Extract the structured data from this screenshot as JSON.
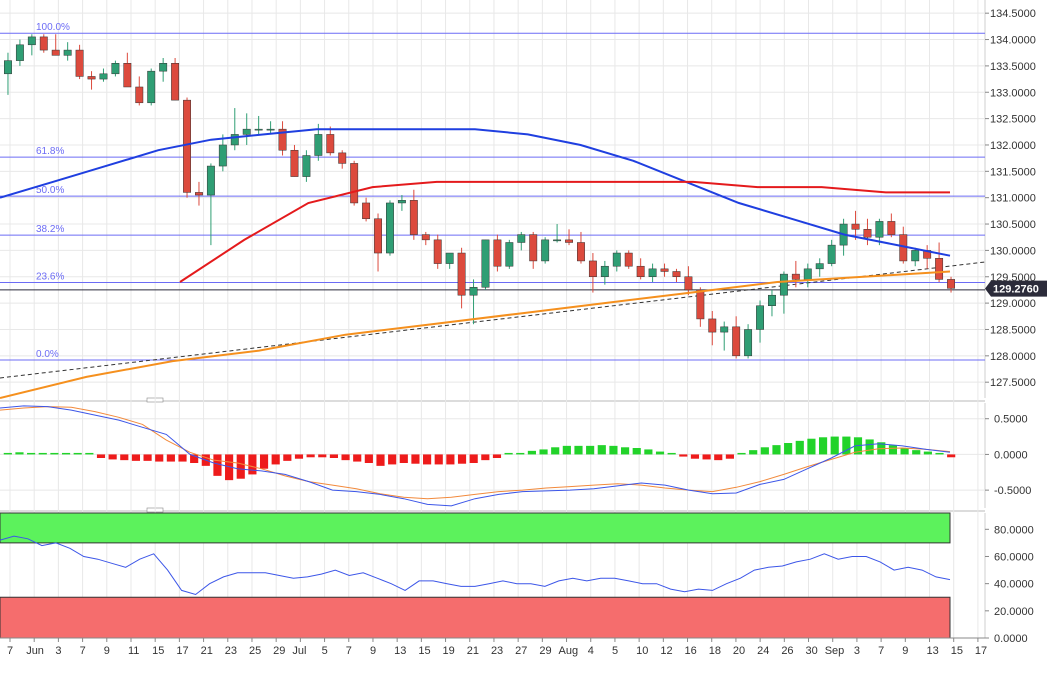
{
  "chart_data": [
    {
      "type": "candlestick",
      "panel": "price",
      "y_axis_ticks": [
        "134.5000",
        "134.0000",
        "133.5000",
        "133.0000",
        "132.5000",
        "132.0000",
        "131.5000",
        "131.0000",
        "130.5000",
        "130.0000",
        "129.5000",
        "129.0000",
        "128.5000",
        "128.0000",
        "127.5000"
      ],
      "ylim": [
        127.2,
        134.75
      ],
      "last_price_label": "129.2760",
      "last_price": 129.276,
      "fib_levels": [
        {
          "label": "100.0%",
          "value": 134.12
        },
        {
          "label": "61.8%",
          "value": 131.77
        },
        {
          "label": "50.0%",
          "value": 131.03
        },
        {
          "label": "38.2%",
          "value": 130.29
        },
        {
          "label": "23.6%",
          "value": 129.39
        },
        {
          "label": "0.0%",
          "value": 127.92
        }
      ],
      "support_line_value": 129.25,
      "trendline": {
        "start": 127.58,
        "end": 129.78
      },
      "ma_blue": [
        131.0,
        131.3,
        131.6,
        131.9,
        132.1,
        132.2,
        132.3,
        132.3,
        132.3,
        132.3,
        132.2,
        132.0,
        131.7,
        131.3,
        130.9,
        130.6,
        130.3,
        130.1,
        129.9
      ],
      "ma_red": [
        129.4,
        130.2,
        130.9,
        131.2,
        131.3,
        131.3,
        131.3,
        131.3,
        131.3,
        131.2,
        131.2,
        131.1,
        131.1
      ],
      "ma_orange": [
        127.2,
        127.6,
        127.9,
        128.1,
        128.4,
        128.6,
        128.8,
        129.0,
        129.2,
        129.4,
        129.5,
        129.6
      ],
      "candles": [
        {
          "o": 133.35,
          "h": 133.75,
          "l": 132.95,
          "c": 133.6
        },
        {
          "o": 133.6,
          "h": 134.0,
          "l": 133.5,
          "c": 133.9
        },
        {
          "o": 133.9,
          "h": 134.1,
          "l": 133.7,
          "c": 134.05
        },
        {
          "o": 134.05,
          "h": 134.1,
          "l": 133.75,
          "c": 133.8
        },
        {
          "o": 133.8,
          "h": 134.1,
          "l": 133.7,
          "c": 133.7
        },
        {
          "o": 133.7,
          "h": 133.95,
          "l": 133.6,
          "c": 133.8
        },
        {
          "o": 133.8,
          "h": 133.9,
          "l": 133.25,
          "c": 133.3
        },
        {
          "o": 133.3,
          "h": 133.4,
          "l": 133.05,
          "c": 133.25
        },
        {
          "o": 133.25,
          "h": 133.45,
          "l": 133.2,
          "c": 133.35
        },
        {
          "o": 133.35,
          "h": 133.6,
          "l": 133.3,
          "c": 133.55
        },
        {
          "o": 133.55,
          "h": 133.75,
          "l": 133.1,
          "c": 133.1
        },
        {
          "o": 133.1,
          "h": 133.3,
          "l": 132.75,
          "c": 132.8
        },
        {
          "o": 132.8,
          "h": 133.45,
          "l": 132.75,
          "c": 133.4
        },
        {
          "o": 133.4,
          "h": 133.65,
          "l": 133.2,
          "c": 133.55
        },
        {
          "o": 133.55,
          "h": 133.65,
          "l": 132.85,
          "c": 132.85
        },
        {
          "o": 132.85,
          "h": 132.9,
          "l": 131.0,
          "c": 131.1
        },
        {
          "o": 131.1,
          "h": 131.3,
          "l": 130.85,
          "c": 131.05
        },
        {
          "o": 131.05,
          "h": 131.65,
          "l": 130.1,
          "c": 131.6
        },
        {
          "o": 131.6,
          "h": 132.2,
          "l": 131.5,
          "c": 132.0
        },
        {
          "o": 132.0,
          "h": 132.7,
          "l": 131.9,
          "c": 132.2
        },
        {
          "o": 132.2,
          "h": 132.6,
          "l": 132.0,
          "c": 132.3
        },
        {
          "o": 132.3,
          "h": 132.55,
          "l": 132.2,
          "c": 132.3
        },
        {
          "o": 132.3,
          "h": 132.45,
          "l": 132.2,
          "c": 132.3
        },
        {
          "o": 132.3,
          "h": 132.45,
          "l": 131.8,
          "c": 131.9
        },
        {
          "o": 131.9,
          "h": 132.0,
          "l": 131.4,
          "c": 131.4
        },
        {
          "o": 131.4,
          "h": 131.9,
          "l": 131.3,
          "c": 131.8
        },
        {
          "o": 131.8,
          "h": 132.4,
          "l": 131.7,
          "c": 132.2
        },
        {
          "o": 132.2,
          "h": 132.35,
          "l": 131.8,
          "c": 131.85
        },
        {
          "o": 131.85,
          "h": 131.9,
          "l": 131.55,
          "c": 131.65
        },
        {
          "o": 131.65,
          "h": 131.7,
          "l": 130.85,
          "c": 130.9
        },
        {
          "o": 130.9,
          "h": 131.0,
          "l": 130.55,
          "c": 130.6
        },
        {
          "o": 130.6,
          "h": 130.7,
          "l": 129.6,
          "c": 129.95
        },
        {
          "o": 129.95,
          "h": 130.95,
          "l": 129.9,
          "c": 130.9
        },
        {
          "o": 130.9,
          "h": 131.05,
          "l": 130.75,
          "c": 130.95
        },
        {
          "o": 130.95,
          "h": 131.15,
          "l": 130.2,
          "c": 130.3
        },
        {
          "o": 130.3,
          "h": 130.35,
          "l": 130.1,
          "c": 130.2
        },
        {
          "o": 130.2,
          "h": 130.3,
          "l": 129.65,
          "c": 129.75
        },
        {
          "o": 129.75,
          "h": 129.95,
          "l": 129.65,
          "c": 129.95
        },
        {
          "o": 129.95,
          "h": 130.05,
          "l": 128.9,
          "c": 129.15
        },
        {
          "o": 129.15,
          "h": 129.45,
          "l": 128.6,
          "c": 129.3
        },
        {
          "o": 129.3,
          "h": 130.2,
          "l": 129.25,
          "c": 130.2
        },
        {
          "o": 130.2,
          "h": 130.3,
          "l": 129.6,
          "c": 129.7
        },
        {
          "o": 129.7,
          "h": 130.2,
          "l": 129.65,
          "c": 130.15
        },
        {
          "o": 130.15,
          "h": 130.35,
          "l": 130.0,
          "c": 130.3
        },
        {
          "o": 130.3,
          "h": 130.35,
          "l": 129.65,
          "c": 129.8
        },
        {
          "o": 129.8,
          "h": 130.25,
          "l": 129.75,
          "c": 130.2
        },
        {
          "o": 130.2,
          "h": 130.5,
          "l": 130.15,
          "c": 130.2
        },
        {
          "o": 130.2,
          "h": 130.4,
          "l": 130.1,
          "c": 130.15
        },
        {
          "o": 130.15,
          "h": 130.35,
          "l": 129.75,
          "c": 129.8
        },
        {
          "o": 129.8,
          "h": 129.95,
          "l": 129.2,
          "c": 129.5
        },
        {
          "o": 129.5,
          "h": 129.8,
          "l": 129.35,
          "c": 129.7
        },
        {
          "o": 129.7,
          "h": 130.0,
          "l": 129.6,
          "c": 129.95
        },
        {
          "o": 129.95,
          "h": 130.0,
          "l": 129.65,
          "c": 129.7
        },
        {
          "o": 129.7,
          "h": 129.85,
          "l": 129.45,
          "c": 129.5
        },
        {
          "o": 129.5,
          "h": 129.75,
          "l": 129.4,
          "c": 129.65
        },
        {
          "o": 129.65,
          "h": 129.75,
          "l": 129.5,
          "c": 129.6
        },
        {
          "o": 129.6,
          "h": 129.65,
          "l": 129.4,
          "c": 129.5
        },
        {
          "o": 129.5,
          "h": 129.7,
          "l": 129.15,
          "c": 129.25
        },
        {
          "o": 129.25,
          "h": 129.3,
          "l": 128.55,
          "c": 128.7
        },
        {
          "o": 128.7,
          "h": 128.85,
          "l": 128.2,
          "c": 128.45
        },
        {
          "o": 128.45,
          "h": 128.65,
          "l": 128.1,
          "c": 128.55
        },
        {
          "o": 128.55,
          "h": 128.75,
          "l": 127.95,
          "c": 128.0
        },
        {
          "o": 128.0,
          "h": 128.6,
          "l": 127.95,
          "c": 128.5
        },
        {
          "o": 128.5,
          "h": 129.05,
          "l": 128.25,
          "c": 128.95
        },
        {
          "o": 128.95,
          "h": 129.25,
          "l": 128.75,
          "c": 129.15
        },
        {
          "o": 129.15,
          "h": 129.6,
          "l": 128.8,
          "c": 129.55
        },
        {
          "o": 129.55,
          "h": 129.8,
          "l": 129.3,
          "c": 129.45
        },
        {
          "o": 129.45,
          "h": 129.75,
          "l": 129.3,
          "c": 129.65
        },
        {
          "o": 129.65,
          "h": 129.85,
          "l": 129.5,
          "c": 129.75
        },
        {
          "o": 129.75,
          "h": 130.2,
          "l": 129.7,
          "c": 130.1
        },
        {
          "o": 130.1,
          "h": 130.6,
          "l": 129.9,
          "c": 130.5
        },
        {
          "o": 130.5,
          "h": 130.75,
          "l": 130.2,
          "c": 130.4
        },
        {
          "o": 130.4,
          "h": 130.6,
          "l": 130.1,
          "c": 130.25
        },
        {
          "o": 130.25,
          "h": 130.6,
          "l": 130.1,
          "c": 130.55
        },
        {
          "o": 130.55,
          "h": 130.7,
          "l": 130.25,
          "c": 130.3
        },
        {
          "o": 130.3,
          "h": 130.45,
          "l": 129.75,
          "c": 129.8
        },
        {
          "o": 129.8,
          "h": 130.05,
          "l": 129.7,
          "c": 130.0
        },
        {
          "o": 130.0,
          "h": 130.1,
          "l": 129.65,
          "c": 129.85
        },
        {
          "o": 129.85,
          "h": 130.15,
          "l": 129.4,
          "c": 129.45
        },
        {
          "o": 129.45,
          "h": 129.5,
          "l": 129.2,
          "c": 129.28
        }
      ]
    },
    {
      "type": "histogram+line",
      "panel": "macd",
      "y_axis_ticks": [
        "0.5000",
        "0.0000",
        "-0.5000"
      ],
      "ylim": [
        -0.75,
        0.72
      ],
      "histogram": [
        0.02,
        0.03,
        0.02,
        0.0,
        0.0,
        0.0,
        0.0,
        0.0,
        -0.05,
        -0.07,
        -0.08,
        -0.09,
        -0.09,
        -0.1,
        -0.1,
        -0.1,
        -0.12,
        -0.16,
        -0.3,
        -0.36,
        -0.34,
        -0.28,
        -0.2,
        -0.14,
        -0.09,
        -0.06,
        -0.04,
        -0.04,
        -0.05,
        -0.08,
        -0.1,
        -0.12,
        -0.16,
        -0.14,
        -0.12,
        -0.13,
        -0.14,
        -0.14,
        -0.14,
        -0.13,
        -0.12,
        -0.08,
        -0.05,
        0.0,
        0.02,
        0.05,
        0.07,
        0.1,
        0.12,
        0.12,
        0.12,
        0.13,
        0.12,
        0.1,
        0.09,
        0.07,
        0.04,
        0.0,
        -0.03,
        -0.06,
        -0.07,
        -0.08,
        -0.06,
        0.0,
        0.06,
        0.1,
        0.13,
        0.16,
        0.19,
        0.22,
        0.24,
        0.25,
        0.25,
        0.24,
        0.21,
        0.17,
        0.13,
        0.09,
        0.06,
        0.04,
        0.0,
        -0.04
      ],
      "macd_line": [
        0.65,
        0.68,
        0.67,
        0.62,
        0.55,
        0.48,
        0.38,
        0.28,
        0.0,
        -0.12,
        -0.2,
        -0.23,
        -0.28,
        -0.38,
        -0.5,
        -0.52,
        -0.56,
        -0.62,
        -0.7,
        -0.72,
        -0.62,
        -0.56,
        -0.52,
        -0.51,
        -0.5,
        -0.48,
        -0.44,
        -0.4,
        -0.43,
        -0.5,
        -0.55,
        -0.54,
        -0.42,
        -0.35,
        -0.2,
        -0.05,
        0.12,
        0.15,
        0.12,
        0.07,
        0.03
      ],
      "signal_line": [
        0.62,
        0.65,
        0.67,
        0.66,
        0.6,
        0.52,
        0.42,
        0.2,
        0.03,
        -0.08,
        -0.12,
        -0.2,
        -0.3,
        -0.38,
        -0.43,
        -0.48,
        -0.55,
        -0.6,
        -0.62,
        -0.6,
        -0.56,
        -0.52,
        -0.5,
        -0.47,
        -0.45,
        -0.43,
        -0.41,
        -0.43,
        -0.47,
        -0.5,
        -0.52,
        -0.46,
        -0.38,
        -0.28,
        -0.17,
        -0.07,
        0.03,
        0.08,
        0.09,
        0.07,
        0.04
      ]
    },
    {
      "type": "line",
      "panel": "rsi",
      "y_axis_ticks": [
        "80.0000",
        "60.0000",
        "40.0000",
        "20.0000",
        "0.0000"
      ],
      "ylim": [
        0,
        92
      ],
      "overbought_zone": [
        70,
        92
      ],
      "oversold_zone": [
        0,
        30
      ],
      "values": [
        72,
        75,
        73,
        68,
        70,
        66,
        60,
        58,
        55,
        52,
        58,
        62,
        50,
        35,
        32,
        40,
        45,
        48,
        48,
        48,
        46,
        44,
        45,
        47,
        50,
        46,
        48,
        44,
        40,
        35,
        42,
        42,
        40,
        38,
        38,
        40,
        42,
        40,
        40,
        38,
        42,
        44,
        42,
        44,
        44,
        42,
        40,
        40,
        36,
        34,
        36,
        35,
        40,
        44,
        50,
        52,
        53,
        56,
        58,
        62,
        58,
        60,
        60,
        56,
        50,
        52,
        50,
        45,
        43
      ]
    }
  ],
  "x_axis_labels": [
    "7",
    "Jun",
    "3",
    "7",
    "9",
    "11",
    "15",
    "17",
    "21",
    "23",
    "25",
    "29",
    "Jul",
    "5",
    "7",
    "9",
    "13",
    "15",
    "19",
    "21",
    "23",
    "27",
    "29",
    "Aug",
    "4",
    "5",
    "10",
    "12",
    "16",
    "18",
    "20",
    "24",
    "26",
    "30",
    "Sep",
    "3",
    "7",
    "9",
    "13",
    "15",
    "17"
  ],
  "colors": {
    "bull": "#2f9e74",
    "bear": "#dc4a3d",
    "fib": "#6c6cf5",
    "ma_blue": "#1f3fe0",
    "ma_red": "#e41a1c",
    "ma_orange": "#f5901e",
    "macd_pos": "#22d32a",
    "macd_neg": "#ee1b1b",
    "macd_line": "#3c56e8",
    "signal_line": "#f28a3c",
    "rsi_line": "#3c56e8",
    "rsi_overbought": "#5cf25c",
    "rsi_oversold": "#f56d6d",
    "axis_text": "#333333",
    "grid": "#e8e8e8",
    "last_price_bg": "#2b2b3a"
  }
}
